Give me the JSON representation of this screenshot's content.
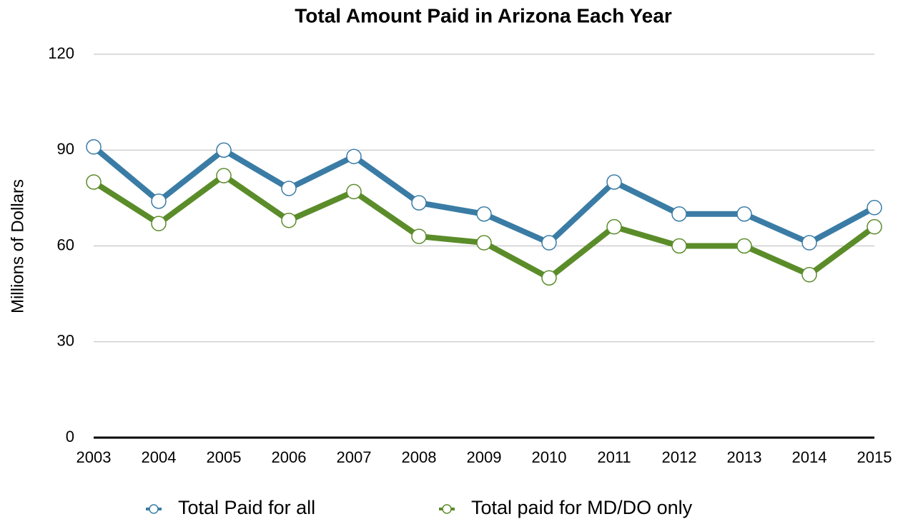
{
  "chart_data": {
    "type": "line",
    "title": "Total Amount Paid in Arizona Each Year",
    "y_label": "Millions of Dollars",
    "categories": [
      "2003",
      "2004",
      "2005",
      "2006",
      "2007",
      "2008",
      "2009",
      "2010",
      "2011",
      "2012",
      "2013",
      "2014",
      "2015"
    ],
    "series": [
      {
        "name": "Total Paid for all",
        "color": "#3a7ca5",
        "values": [
          91,
          74,
          90,
          78,
          88,
          73.5,
          70,
          61,
          80,
          70,
          70,
          61,
          72
        ]
      },
      {
        "name": "Total paid for MD/DO only",
        "color": "#5b8c2a",
        "values": [
          80,
          67,
          82,
          68,
          77,
          63,
          61,
          50,
          66,
          60,
          60,
          51,
          66
        ]
      }
    ],
    "ylim": [
      0,
      120
    ],
    "yticks": [
      0,
      30,
      60,
      90,
      120
    ],
    "grid": true,
    "legend": "bottom"
  }
}
